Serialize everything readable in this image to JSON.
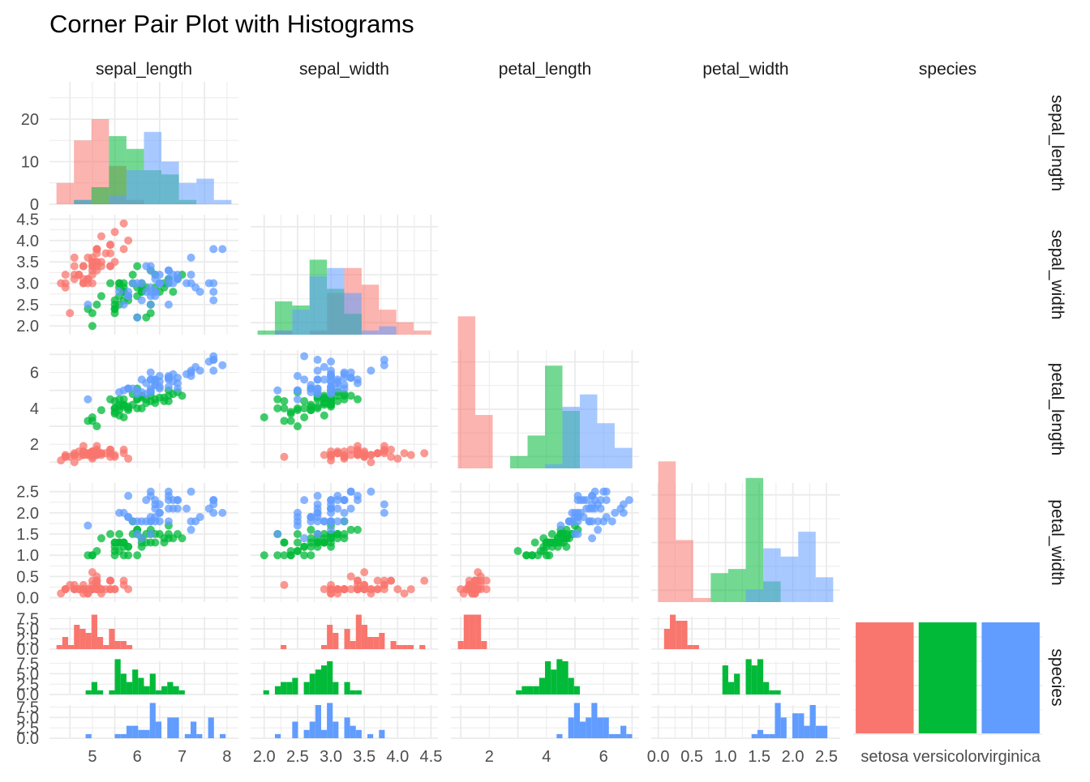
{
  "title": "Corner Pair Plot with Histograms",
  "variables": [
    "sepal_length",
    "sepal_width",
    "petal_length",
    "petal_width",
    "species"
  ],
  "species": [
    {
      "name": "setosa",
      "color": "#F8766D"
    },
    {
      "name": "versicolor",
      "color": "#00BA38"
    },
    {
      "name": "virginica",
      "color": "#619CFF"
    }
  ],
  "axis_ticks": {
    "sepal_length": {
      "ticks": [
        5,
        6,
        7,
        8
      ],
      "range": [
        4.2,
        8.1
      ]
    },
    "sepal_width": {
      "ticks": [
        2.0,
        2.5,
        3.0,
        3.5,
        4.0,
        4.5
      ],
      "labels": [
        "2.0",
        "2.5",
        "3.0",
        "3.5",
        "4.0",
        "4.5"
      ],
      "range": [
        1.9,
        4.5
      ]
    },
    "petal_length": {
      "ticks": [
        2,
        4,
        6
      ],
      "range": [
        0.9,
        7.0
      ]
    },
    "petal_width": {
      "ticks": [
        0.0,
        0.5,
        1.0,
        1.5,
        2.0,
        2.5
      ],
      "labels": [
        "0.0",
        "0.5",
        "1.0",
        "1.5",
        "2.0",
        "2.5"
      ],
      "range": [
        0.0,
        2.6
      ]
    }
  },
  "chart_data": {
    "type": "scatter",
    "title": "Corner Pair Plot with Histograms",
    "grid": true,
    "diag_hist_count_axis": {
      "ticks": [
        0,
        10,
        20
      ],
      "range": [
        0,
        28
      ]
    },
    "species_hist_count_axis": {
      "ticks": [
        0.0,
        2.5,
        5.0,
        7.5
      ],
      "labels": [
        "0.0",
        "2.5",
        "5.0",
        "7.5"
      ],
      "range": [
        0,
        8
      ]
    },
    "species_counts": {
      "categories": [
        "setosa",
        "versicolor",
        "virginica"
      ],
      "values": [
        50,
        50,
        50
      ]
    },
    "iris": {
      "setosa": [
        [
          5.1,
          3.5,
          1.4,
          0.2
        ],
        [
          4.9,
          3.0,
          1.4,
          0.2
        ],
        [
          4.7,
          3.2,
          1.3,
          0.2
        ],
        [
          4.6,
          3.1,
          1.5,
          0.2
        ],
        [
          5.0,
          3.6,
          1.4,
          0.2
        ],
        [
          5.4,
          3.9,
          1.7,
          0.4
        ],
        [
          4.6,
          3.4,
          1.4,
          0.3
        ],
        [
          5.0,
          3.4,
          1.5,
          0.2
        ],
        [
          4.4,
          2.9,
          1.4,
          0.2
        ],
        [
          4.9,
          3.1,
          1.5,
          0.1
        ],
        [
          5.4,
          3.7,
          1.5,
          0.2
        ],
        [
          4.8,
          3.4,
          1.6,
          0.2
        ],
        [
          4.8,
          3.0,
          1.4,
          0.1
        ],
        [
          4.3,
          3.0,
          1.1,
          0.1
        ],
        [
          5.8,
          4.0,
          1.2,
          0.2
        ],
        [
          5.7,
          4.4,
          1.5,
          0.4
        ],
        [
          5.4,
          3.9,
          1.3,
          0.4
        ],
        [
          5.1,
          3.5,
          1.4,
          0.3
        ],
        [
          5.7,
          3.8,
          1.7,
          0.3
        ],
        [
          5.1,
          3.8,
          1.5,
          0.3
        ],
        [
          5.4,
          3.4,
          1.7,
          0.2
        ],
        [
          5.1,
          3.7,
          1.5,
          0.4
        ],
        [
          4.6,
          3.6,
          1.0,
          0.2
        ],
        [
          5.1,
          3.3,
          1.7,
          0.5
        ],
        [
          4.8,
          3.4,
          1.9,
          0.2
        ],
        [
          5.0,
          3.0,
          1.6,
          0.2
        ],
        [
          5.0,
          3.4,
          1.6,
          0.4
        ],
        [
          5.2,
          3.5,
          1.5,
          0.2
        ],
        [
          5.2,
          3.4,
          1.4,
          0.2
        ],
        [
          4.7,
          3.2,
          1.6,
          0.2
        ],
        [
          4.8,
          3.1,
          1.6,
          0.2
        ],
        [
          5.4,
          3.4,
          1.5,
          0.4
        ],
        [
          5.2,
          4.1,
          1.5,
          0.1
        ],
        [
          5.5,
          4.2,
          1.4,
          0.2
        ],
        [
          4.9,
          3.1,
          1.5,
          0.2
        ],
        [
          5.0,
          3.2,
          1.2,
          0.2
        ],
        [
          5.5,
          3.5,
          1.3,
          0.2
        ],
        [
          4.9,
          3.6,
          1.4,
          0.1
        ],
        [
          4.4,
          3.0,
          1.3,
          0.2
        ],
        [
          5.1,
          3.4,
          1.5,
          0.2
        ],
        [
          5.0,
          3.5,
          1.3,
          0.3
        ],
        [
          4.5,
          2.3,
          1.3,
          0.3
        ],
        [
          4.4,
          3.2,
          1.3,
          0.2
        ],
        [
          5.0,
          3.5,
          1.6,
          0.6
        ],
        [
          5.1,
          3.8,
          1.9,
          0.4
        ],
        [
          4.8,
          3.0,
          1.4,
          0.3
        ],
        [
          5.1,
          3.8,
          1.6,
          0.2
        ],
        [
          4.6,
          3.2,
          1.4,
          0.2
        ],
        [
          5.3,
          3.7,
          1.5,
          0.2
        ],
        [
          5.0,
          3.3,
          1.4,
          0.2
        ]
      ],
      "versicolor": [
        [
          7.0,
          3.2,
          4.7,
          1.4
        ],
        [
          6.4,
          3.2,
          4.5,
          1.5
        ],
        [
          6.9,
          3.1,
          4.9,
          1.5
        ],
        [
          5.5,
          2.3,
          4.0,
          1.3
        ],
        [
          6.5,
          2.8,
          4.6,
          1.5
        ],
        [
          5.7,
          2.8,
          4.5,
          1.3
        ],
        [
          6.3,
          3.3,
          4.7,
          1.6
        ],
        [
          4.9,
          2.4,
          3.3,
          1.0
        ],
        [
          6.6,
          2.9,
          4.6,
          1.3
        ],
        [
          5.2,
          2.7,
          3.9,
          1.4
        ],
        [
          5.0,
          2.0,
          3.5,
          1.0
        ],
        [
          5.9,
          3.0,
          4.2,
          1.5
        ],
        [
          6.0,
          2.2,
          4.0,
          1.0
        ],
        [
          6.1,
          2.9,
          4.7,
          1.4
        ],
        [
          5.6,
          2.9,
          3.6,
          1.3
        ],
        [
          6.7,
          3.1,
          4.4,
          1.4
        ],
        [
          5.6,
          3.0,
          4.5,
          1.5
        ],
        [
          5.8,
          2.7,
          4.1,
          1.0
        ],
        [
          6.2,
          2.2,
          4.5,
          1.5
        ],
        [
          5.6,
          2.5,
          3.9,
          1.1
        ],
        [
          5.9,
          3.2,
          4.8,
          1.8
        ],
        [
          6.1,
          2.8,
          4.0,
          1.3
        ],
        [
          6.3,
          2.5,
          4.9,
          1.5
        ],
        [
          6.1,
          2.8,
          4.7,
          1.2
        ],
        [
          6.4,
          2.9,
          4.3,
          1.3
        ],
        [
          6.6,
          3.0,
          4.4,
          1.4
        ],
        [
          6.8,
          2.8,
          4.8,
          1.4
        ],
        [
          6.7,
          3.0,
          5.0,
          1.7
        ],
        [
          6.0,
          2.9,
          4.5,
          1.5
        ],
        [
          5.7,
          2.6,
          3.5,
          1.0
        ],
        [
          5.5,
          2.4,
          3.8,
          1.1
        ],
        [
          5.5,
          2.4,
          3.7,
          1.0
        ],
        [
          5.8,
          2.7,
          3.9,
          1.2
        ],
        [
          6.0,
          2.7,
          5.1,
          1.6
        ],
        [
          5.4,
          3.0,
          4.5,
          1.5
        ],
        [
          6.0,
          3.4,
          4.5,
          1.6
        ],
        [
          6.7,
          3.1,
          4.7,
          1.5
        ],
        [
          6.3,
          2.3,
          4.4,
          1.3
        ],
        [
          5.6,
          3.0,
          4.1,
          1.3
        ],
        [
          5.5,
          2.5,
          4.0,
          1.3
        ],
        [
          5.5,
          2.6,
          4.4,
          1.2
        ],
        [
          6.1,
          3.0,
          4.6,
          1.4
        ],
        [
          5.8,
          2.6,
          4.0,
          1.2
        ],
        [
          5.0,
          2.3,
          3.3,
          1.0
        ],
        [
          5.6,
          2.7,
          4.2,
          1.3
        ],
        [
          5.7,
          3.0,
          4.2,
          1.2
        ],
        [
          5.7,
          2.9,
          4.2,
          1.3
        ],
        [
          6.2,
          2.9,
          4.3,
          1.3
        ],
        [
          5.1,
          2.5,
          3.0,
          1.1
        ],
        [
          5.7,
          2.8,
          4.1,
          1.3
        ]
      ],
      "virginica": [
        [
          6.3,
          3.3,
          6.0,
          2.5
        ],
        [
          5.8,
          2.7,
          5.1,
          1.9
        ],
        [
          7.1,
          3.0,
          5.9,
          2.1
        ],
        [
          6.3,
          2.9,
          5.6,
          1.8
        ],
        [
          6.5,
          3.0,
          5.8,
          2.2
        ],
        [
          7.6,
          3.0,
          6.6,
          2.1
        ],
        [
          4.9,
          2.5,
          4.5,
          1.7
        ],
        [
          7.3,
          2.9,
          6.3,
          1.8
        ],
        [
          6.7,
          2.5,
          5.8,
          1.8
        ],
        [
          7.2,
          3.6,
          6.1,
          2.5
        ],
        [
          6.5,
          3.2,
          5.1,
          2.0
        ],
        [
          6.4,
          2.7,
          5.3,
          1.9
        ],
        [
          6.8,
          3.0,
          5.5,
          2.1
        ],
        [
          5.7,
          2.5,
          5.0,
          2.0
        ],
        [
          5.8,
          2.8,
          5.1,
          2.4
        ],
        [
          6.4,
          3.2,
          5.3,
          2.3
        ],
        [
          6.5,
          3.0,
          5.5,
          1.8
        ],
        [
          7.7,
          3.8,
          6.7,
          2.2
        ],
        [
          7.7,
          2.6,
          6.9,
          2.3
        ],
        [
          6.0,
          2.2,
          5.0,
          1.5
        ],
        [
          6.9,
          3.2,
          5.7,
          2.3
        ],
        [
          5.6,
          2.8,
          4.9,
          2.0
        ],
        [
          7.7,
          2.8,
          6.7,
          2.0
        ],
        [
          6.3,
          2.7,
          4.9,
          1.8
        ],
        [
          6.7,
          3.3,
          5.7,
          2.1
        ],
        [
          7.2,
          3.2,
          6.0,
          1.8
        ],
        [
          6.2,
          2.8,
          4.8,
          1.8
        ],
        [
          6.1,
          3.0,
          4.9,
          1.8
        ],
        [
          6.4,
          2.8,
          5.6,
          2.1
        ],
        [
          7.2,
          3.0,
          5.8,
          1.6
        ],
        [
          7.4,
          2.8,
          6.1,
          1.9
        ],
        [
          7.9,
          3.8,
          6.4,
          2.0
        ],
        [
          6.4,
          2.8,
          5.6,
          2.2
        ],
        [
          6.3,
          2.8,
          5.1,
          1.5
        ],
        [
          6.1,
          2.6,
          5.6,
          1.4
        ],
        [
          7.7,
          3.0,
          6.1,
          2.3
        ],
        [
          6.3,
          3.4,
          5.6,
          2.4
        ],
        [
          6.4,
          3.1,
          5.5,
          1.8
        ],
        [
          6.0,
          3.0,
          4.8,
          1.8
        ],
        [
          6.9,
          3.1,
          5.4,
          2.1
        ],
        [
          6.7,
          3.1,
          5.6,
          2.4
        ],
        [
          6.9,
          3.1,
          5.1,
          2.3
        ],
        [
          5.8,
          2.7,
          5.1,
          1.9
        ],
        [
          6.8,
          3.2,
          5.9,
          2.3
        ],
        [
          6.7,
          3.3,
          5.7,
          2.5
        ],
        [
          6.7,
          3.0,
          5.2,
          2.3
        ],
        [
          6.3,
          2.5,
          5.0,
          1.9
        ],
        [
          6.5,
          3.0,
          5.2,
          2.0
        ],
        [
          6.2,
          3.4,
          5.4,
          2.3
        ],
        [
          5.9,
          3.0,
          5.1,
          1.8
        ]
      ]
    }
  }
}
